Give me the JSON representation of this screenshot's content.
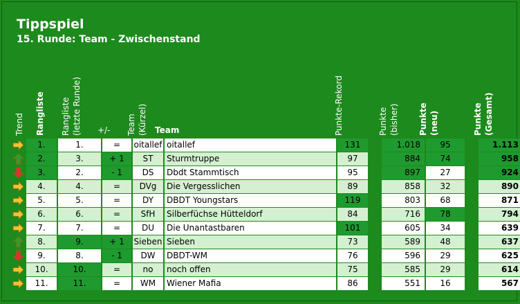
{
  "title": "Tippspiel",
  "subtitle": "15. Runde:  Team - Zwischenstand",
  "headers": {
    "trend": "Trend",
    "rangliste": "Rangliste",
    "rangliste_letzte": "Rangliste",
    "rangliste_letzte2": "(letzte Runde)",
    "diff": "+/-",
    "team_kuerzel": "Team",
    "team_kuerzel2": "(Kürzel)",
    "team": "Team",
    "punkte_rekord": "Punkte-Rekord",
    "punkte_bisher": "Punkte",
    "punkte_bisher2": "(bisher)",
    "punkte_neu": "Punkte",
    "punkte_neu2": "(neu)",
    "punkte_gesamt": "Punkte",
    "punkte_gesamt2": "(Gesamt)"
  },
  "colors": {
    "arrow_up": "#2e9e2e",
    "arrow_down": "#e03030",
    "arrow_same": "#f2c230"
  },
  "rows": [
    {
      "trend": "same",
      "rank": "1.",
      "last": "1.",
      "diff": "=",
      "abbr": "oitallef",
      "team": "oitallef",
      "rekord": "131",
      "bisher": "1.018",
      "neu": "95",
      "gesamt": "1.113"
    },
    {
      "trend": "up",
      "rank": "2.",
      "last": "3.",
      "diff": "+ 1",
      "abbr": "ST",
      "team": "Sturmtruppe",
      "rekord": "97",
      "bisher": "884",
      "neu": "74",
      "gesamt": "958"
    },
    {
      "trend": "down",
      "rank": "3.",
      "last": "2.",
      "diff": "- 1",
      "abbr": "DS",
      "team": "Dbdt Stammtisch",
      "rekord": "95",
      "bisher": "897",
      "neu": "27",
      "gesamt": "924"
    },
    {
      "trend": "same",
      "rank": "4.",
      "last": "4.",
      "diff": "=",
      "abbr": "DVg",
      "team": "Die Vergesslichen",
      "rekord": "89",
      "bisher": "858",
      "neu": "32",
      "gesamt": "890"
    },
    {
      "trend": "same",
      "rank": "5.",
      "last": "5.",
      "diff": "=",
      "abbr": "DY",
      "team": "DBDT Youngstars",
      "rekord": "119",
      "bisher": "803",
      "neu": "68",
      "gesamt": "871"
    },
    {
      "trend": "same",
      "rank": "6.",
      "last": "6.",
      "diff": "=",
      "abbr": "SfH",
      "team": "Silberfüchse Hütteldorf",
      "rekord": "84",
      "bisher": "716",
      "neu": "78",
      "gesamt": "794"
    },
    {
      "trend": "same",
      "rank": "7.",
      "last": "7.",
      "diff": "=",
      "abbr": "DU",
      "team": "Die Unantastbaren",
      "rekord": "101",
      "bisher": "605",
      "neu": "34",
      "gesamt": "639"
    },
    {
      "trend": "up",
      "rank": "8.",
      "last": "9.",
      "diff": "+ 1",
      "abbr": "Sieben",
      "team": "Sieben",
      "rekord": "73",
      "bisher": "589",
      "neu": "48",
      "gesamt": "637"
    },
    {
      "trend": "down",
      "rank": "9.",
      "last": "8.",
      "diff": "- 1",
      "abbr": "DW",
      "team": "DBDT-WM",
      "rekord": "76",
      "bisher": "596",
      "neu": "29",
      "gesamt": "625"
    },
    {
      "trend": "same",
      "rank": "10.",
      "last": "10.",
      "diff": "=",
      "abbr": "no",
      "team": "noch offen",
      "rekord": "75",
      "bisher": "585",
      "neu": "29",
      "gesamt": "614"
    },
    {
      "trend": "same",
      "rank": "11.",
      "last": "11.",
      "diff": "=",
      "abbr": "WM",
      "team": "Wiener Mafia",
      "rekord": "86",
      "bisher": "551",
      "neu": "16",
      "gesamt": "567"
    }
  ]
}
